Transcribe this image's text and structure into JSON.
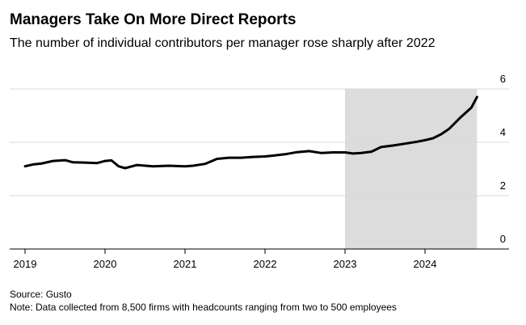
{
  "header": {
    "title": "Managers Take On More Direct Reports",
    "subtitle": "The number of individual contributors per manager rose sharply after 2022"
  },
  "footer": {
    "source": "Source: Gusto",
    "note": "Note: Data collected from 8,500 firms with headcounts ranging from two to 500 employees"
  },
  "colors": {
    "line": "#000000",
    "shade": "#dcdcdc",
    "grid": "#d9d9d9",
    "axis": "#000000"
  },
  "chart_data": {
    "type": "line",
    "title": "Managers Take On More Direct Reports",
    "subtitle": "The number of individual contributors per manager rose sharply after 2022",
    "xlabel": "",
    "ylabel": "",
    "xlim": [
      2019,
      2025
    ],
    "ylim": [
      0,
      6
    ],
    "x_ticks": [
      2019,
      2020,
      2021,
      2022,
      2023,
      2024
    ],
    "x_tick_labels": [
      "2019",
      "2020",
      "2021",
      "2022",
      "2023",
      "2024"
    ],
    "y_ticks": [
      0,
      2,
      4,
      6
    ],
    "y_tick_labels": [
      "0",
      "2",
      "4",
      "6"
    ],
    "y_axis_side": "right",
    "grid": true,
    "shaded_region": {
      "x_start": 2023,
      "x_end": 2024.65
    },
    "series": [
      {
        "name": "Individual contributors per manager",
        "x": [
          2019.0,
          2019.1,
          2019.2,
          2019.35,
          2019.5,
          2019.6,
          2019.75,
          2019.9,
          2020.0,
          2020.08,
          2020.17,
          2020.25,
          2020.4,
          2020.6,
          2020.8,
          2021.0,
          2021.1,
          2021.25,
          2021.4,
          2021.55,
          2021.7,
          2021.85,
          2022.0,
          2022.1,
          2022.25,
          2022.4,
          2022.55,
          2022.7,
          2022.85,
          2023.0,
          2023.1,
          2023.2,
          2023.33,
          2023.45,
          2023.6,
          2023.75,
          2023.9,
          2024.0,
          2024.1,
          2024.2,
          2024.3,
          2024.45,
          2024.58,
          2024.65
        ],
        "values": [
          3.1,
          3.17,
          3.2,
          3.3,
          3.33,
          3.25,
          3.24,
          3.22,
          3.3,
          3.32,
          3.1,
          3.03,
          3.15,
          3.1,
          3.12,
          3.1,
          3.12,
          3.19,
          3.38,
          3.42,
          3.42,
          3.45,
          3.47,
          3.5,
          3.55,
          3.63,
          3.67,
          3.6,
          3.62,
          3.62,
          3.58,
          3.6,
          3.65,
          3.82,
          3.88,
          3.95,
          4.02,
          4.08,
          4.15,
          4.3,
          4.5,
          4.95,
          5.3,
          5.7
        ]
      }
    ]
  }
}
